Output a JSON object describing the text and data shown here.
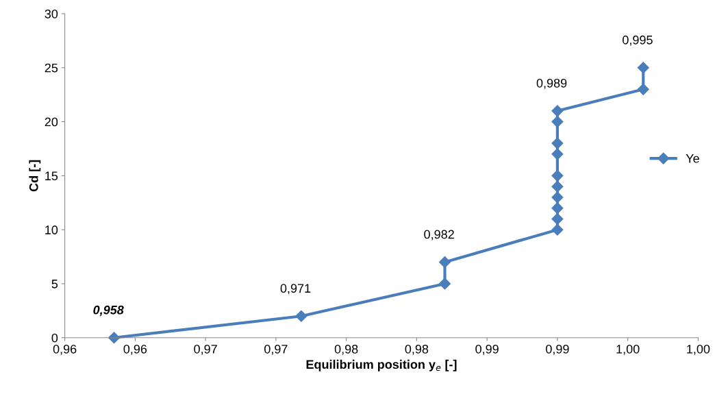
{
  "chart_data": {
    "type": "line",
    "xlabel": "Equilibrium position y$_{e}$ [-]",
    "ylabel": "Cd [-]",
    "xlim": [
      0.955,
      1.0
    ],
    "xticks": [
      {
        "value": 0.955,
        "label": "0,96"
      },
      {
        "value": 0.96,
        "label": "0,96"
      },
      {
        "value": 0.965,
        "label": "0,97"
      },
      {
        "value": 0.97,
        "label": "0,97"
      },
      {
        "value": 0.975,
        "label": "0,98"
      },
      {
        "value": 0.98,
        "label": "0,98"
      },
      {
        "value": 0.985,
        "label": "0,99"
      },
      {
        "value": 0.99,
        "label": "0,99"
      },
      {
        "value": 0.995,
        "label": "1,00"
      },
      {
        "value": 1.0,
        "label": "1,00"
      }
    ],
    "ylim": [
      0,
      30
    ],
    "yticks": [
      0,
      5,
      10,
      15,
      20,
      25,
      30
    ],
    "series": [
      {
        "name": "Ye",
        "color": "#4a7ebb",
        "x": [
          0.9585,
          0.9718,
          0.982,
          0.982,
          0.99,
          0.99,
          0.99,
          0.99,
          0.99,
          0.99,
          0.99,
          0.99,
          0.99,
          0.99,
          0.9961,
          0.9961
        ],
        "values": [
          0,
          2,
          5,
          7,
          10,
          11,
          12,
          13,
          14,
          15,
          17,
          18,
          20,
          21,
          23,
          25
        ]
      }
    ],
    "annotations": [
      {
        "text": "0,958",
        "x": 0.9585,
        "y": 0
      },
      {
        "text": "0,971",
        "x": 0.9718,
        "y": 2
      },
      {
        "text": "0,982",
        "x": 0.982,
        "y": 7
      },
      {
        "text": "0,989",
        "x": 0.99,
        "y": 21
      },
      {
        "text": "0,995",
        "x": 0.9961,
        "y": 25
      }
    ],
    "marker": "diamond",
    "line_style": "solid",
    "legend": "right",
    "grid": false
  }
}
